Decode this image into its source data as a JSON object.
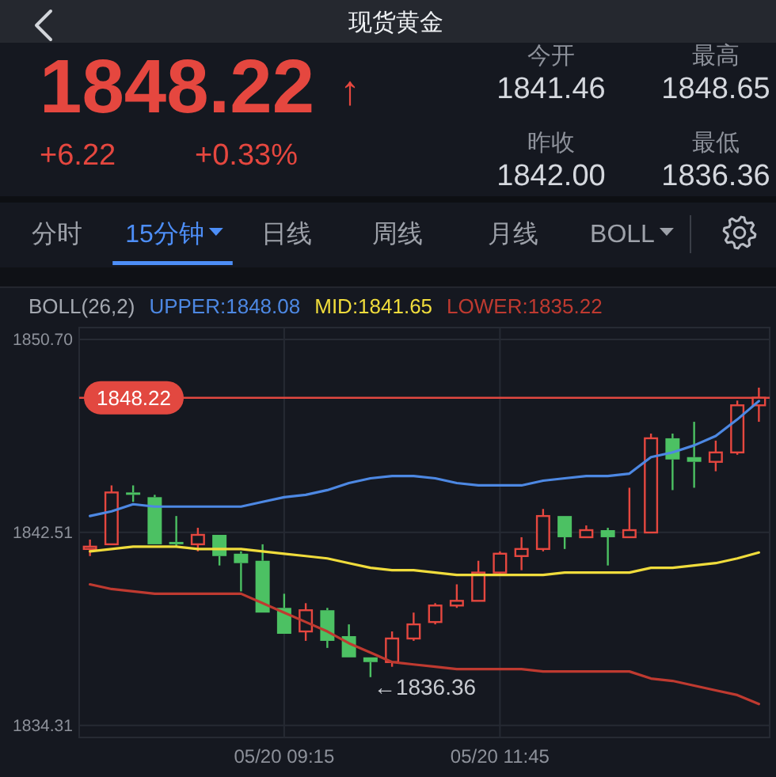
{
  "chart_data": {
    "type": "candlestick",
    "title": "现货黄金",
    "legend_title": "BOLL(26,2)",
    "legend": "top left",
    "categories": [
      null,
      null,
      null,
      null,
      null,
      null,
      null,
      null,
      null,
      "05/20 09:15",
      null,
      null,
      null,
      null,
      null,
      null,
      null,
      null,
      null,
      "05/20 11:45",
      null,
      null,
      null,
      null,
      null,
      null,
      null,
      null,
      null,
      null,
      null,
      null
    ],
    "ohlc": [
      [
        1841.8,
        1842.2,
        1841.5,
        1841.9
      ],
      [
        1842.0,
        1844.5,
        1842.0,
        1844.2
      ],
      [
        1844.2,
        1844.5,
        1843.8,
        1844.1
      ],
      [
        1844.0,
        1844.1,
        1842.0,
        1842.0
      ],
      [
        1842.1,
        1843.2,
        1841.9,
        1842.0
      ],
      [
        1842.0,
        1842.7,
        1841.7,
        1842.4
      ],
      [
        1842.4,
        1842.4,
        1841.1,
        1841.5
      ],
      [
        1841.6,
        1841.7,
        1840.0,
        1841.2
      ],
      [
        1841.3,
        1842.0,
        1839.1,
        1839.1
      ],
      [
        1839.3,
        1839.9,
        1838.2,
        1838.2
      ],
      [
        1838.3,
        1839.5,
        1837.9,
        1839.2
      ],
      [
        1839.2,
        1839.3,
        1837.6,
        1837.9
      ],
      [
        1838.1,
        1838.6,
        1837.2,
        1837.2
      ],
      [
        1837.2,
        1837.2,
        1836.36,
        1837.0
      ],
      [
        1837.0,
        1838.3,
        1836.8,
        1838.0
      ],
      [
        1838.0,
        1839.1,
        1837.9,
        1838.6
      ],
      [
        1838.7,
        1839.5,
        1838.6,
        1839.4
      ],
      [
        1839.4,
        1840.3,
        1839.3,
        1839.6
      ],
      [
        1839.6,
        1841.3,
        1839.6,
        1840.8
      ],
      [
        1840.8,
        1841.7,
        1840.7,
        1841.6
      ],
      [
        1841.5,
        1842.3,
        1840.9,
        1841.8
      ],
      [
        1841.8,
        1843.5,
        1841.7,
        1843.2
      ],
      [
        1843.2,
        1843.2,
        1841.8,
        1842.3
      ],
      [
        1842.3,
        1842.8,
        1842.3,
        1842.6
      ],
      [
        1842.6,
        1842.7,
        1841.1,
        1842.3
      ],
      [
        1842.3,
        1844.4,
        1842.3,
        1842.6
      ],
      [
        1842.5,
        1846.7,
        1842.5,
        1846.5
      ],
      [
        1846.5,
        1846.7,
        1844.3,
        1845.6
      ],
      [
        1845.7,
        1847.2,
        1844.4,
        1845.5
      ],
      [
        1845.5,
        1846.4,
        1845.1,
        1845.9
      ],
      [
        1845.9,
        1848.1,
        1845.8,
        1847.9
      ],
      [
        1847.9,
        1848.65,
        1847.2,
        1848.22
      ]
    ],
    "colors": [
      "#e5473f",
      "#e5473f",
      "#4cc163",
      "#4cc163",
      "#4cc163",
      "#e5473f",
      "#4cc163",
      "#4cc163",
      "#4cc163",
      "#4cc163",
      "#e5473f",
      "#4cc163",
      "#4cc163",
      "#4cc163",
      "#e5473f",
      "#e5473f",
      "#e5473f",
      "#e5473f",
      "#e5473f",
      "#e5473f",
      "#e5473f",
      "#e5473f",
      "#4cc163",
      "#e5473f",
      "#4cc163",
      "#e5473f",
      "#e5473f",
      "#4cc163",
      "#4cc163",
      "#e5473f",
      "#e5473f",
      "#e5473f"
    ],
    "series": [
      {
        "name": "UPPER:1848.08",
        "color": "#4d88e3",
        "type": "line",
        "values": [
          1843.2,
          1843.4,
          1843.7,
          1843.6,
          1843.6,
          1843.6,
          1843.6,
          1843.6,
          1843.8,
          1844.0,
          1844.1,
          1844.3,
          1844.6,
          1844.8,
          1844.9,
          1844.9,
          1844.8,
          1844.6,
          1844.5,
          1844.5,
          1844.5,
          1844.7,
          1844.8,
          1844.9,
          1844.9,
          1845.0,
          1845.7,
          1845.9,
          1846.2,
          1846.6,
          1847.3,
          1848.08
        ]
      },
      {
        "name": "MID:1841.65",
        "color": "#f0dc3c",
        "type": "line",
        "values": [
          1841.7,
          1841.8,
          1841.9,
          1841.9,
          1841.9,
          1841.8,
          1841.8,
          1841.8,
          1841.7,
          1841.6,
          1841.5,
          1841.4,
          1841.2,
          1841.0,
          1840.9,
          1840.9,
          1840.8,
          1840.7,
          1840.7,
          1840.7,
          1840.7,
          1840.7,
          1840.8,
          1840.8,
          1840.8,
          1840.8,
          1841.0,
          1841.0,
          1841.1,
          1841.2,
          1841.4,
          1841.65
        ]
      },
      {
        "name": "LOWER:1835.22",
        "color": "#bf3a30",
        "type": "line",
        "values": [
          1840.3,
          1840.1,
          1840.0,
          1839.9,
          1839.9,
          1839.9,
          1839.9,
          1839.9,
          1839.5,
          1839.1,
          1838.7,
          1838.3,
          1837.8,
          1837.4,
          1837.0,
          1836.9,
          1836.8,
          1836.7,
          1836.7,
          1836.7,
          1836.7,
          1836.6,
          1836.6,
          1836.6,
          1836.6,
          1836.6,
          1836.3,
          1836.2,
          1836.0,
          1835.8,
          1835.6,
          1835.22
        ]
      }
    ],
    "ylim": [
      1833.8,
      1851.2
    ],
    "yticks": [
      1834.31,
      1842.51,
      {
        "value": 1850.7,
        "label": "1850.70"
      }
    ],
    "grid": true,
    "ref_lines": [
      {
        "axis": "y",
        "value": 1848.22,
        "label": "1848.22",
        "color": "#e24840"
      }
    ],
    "annotations": [
      "←1836.36",
      "1848.22",
      "↑",
      "+6.22",
      "+0.33%",
      "今开",
      "1841.46",
      "最高",
      "1848.65",
      "昨收",
      "1842.00",
      "最低",
      "1836.36",
      "分时",
      "15分钟",
      "日线",
      "周线",
      "月线",
      "BOLL"
    ]
  }
}
